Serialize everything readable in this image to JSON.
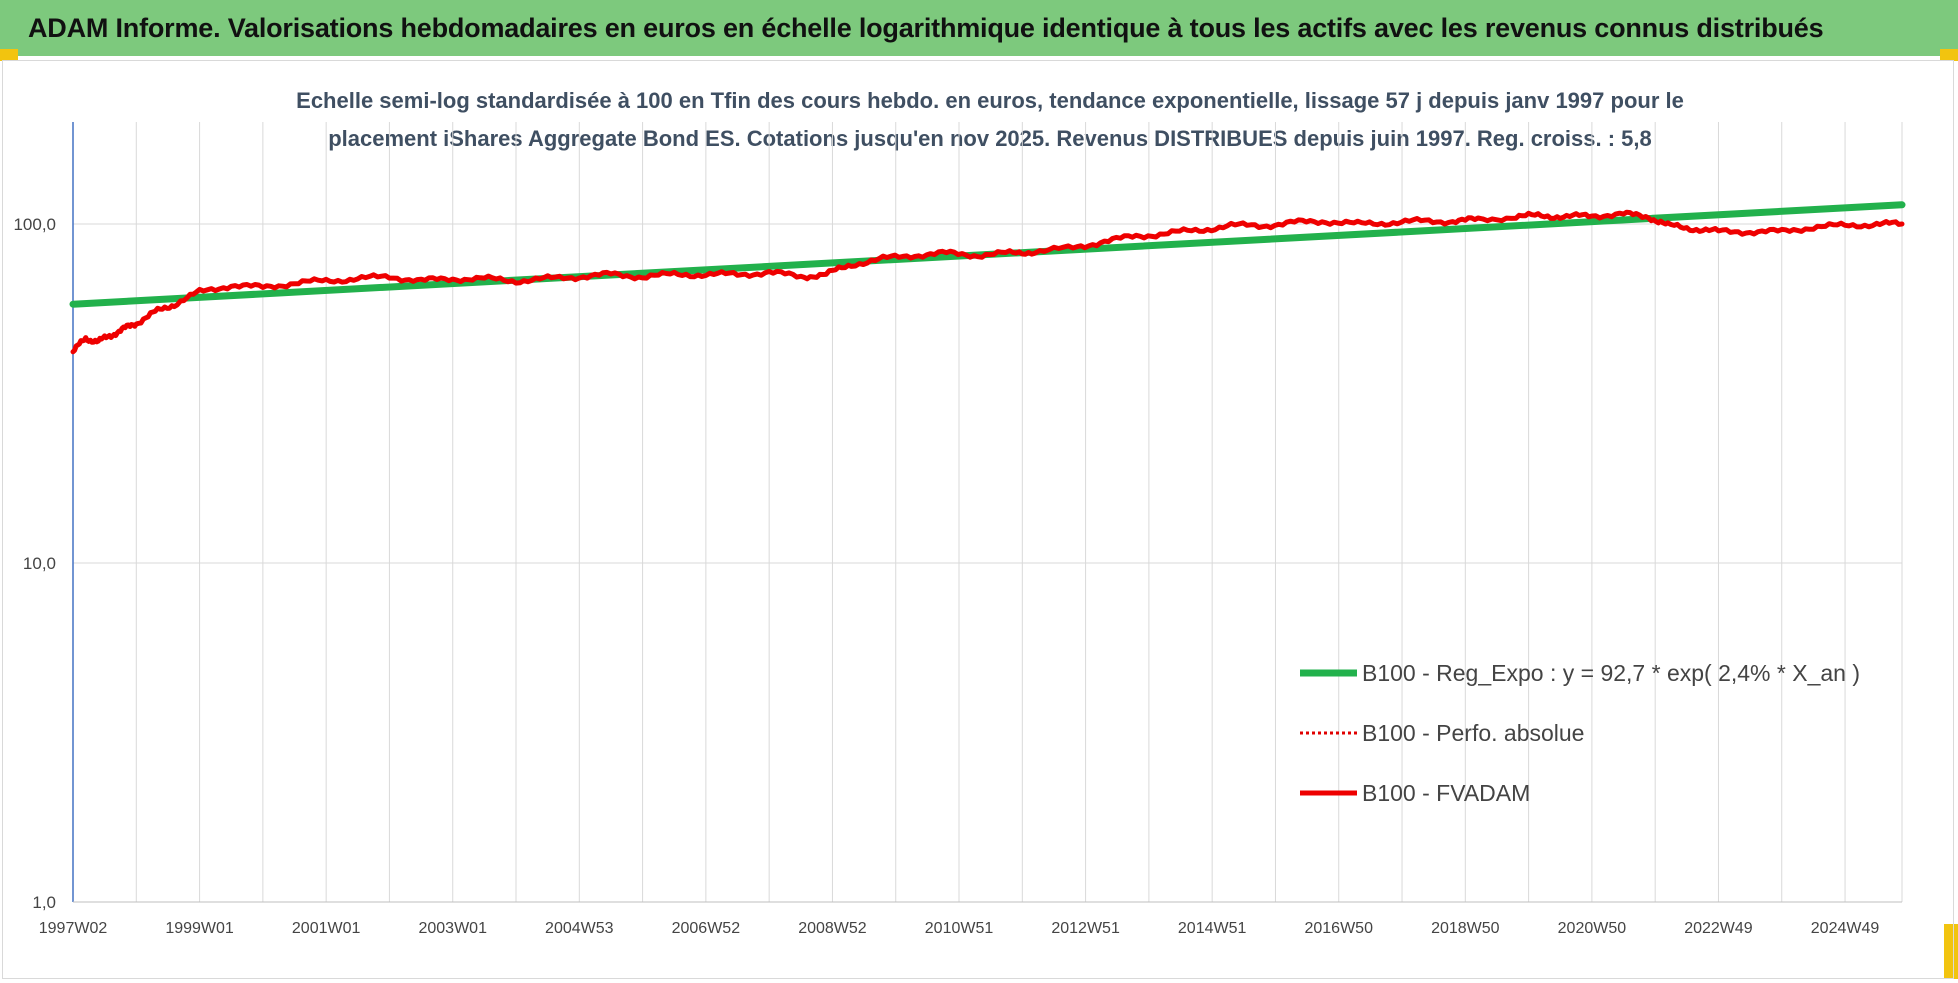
{
  "header": {
    "title": "ADAM Informe. Valorisations hebdomadaires en euros en échelle logarithmique identique à tous les actifs avec les revenus connus distribués"
  },
  "colors": {
    "banner": "#7dc97d",
    "regression": "#22b14c",
    "perf": "#e00000",
    "fvadam": "#ee0000",
    "grid": "#d9d9d9",
    "title": "#3f4f62"
  },
  "chart_data": {
    "type": "line",
    "title_lines": [
      "Echelle semi-log standardisée à 100 en Tfin des cours hebdo. en euros, tendance exponentielle, lissage 57 j depuis janv 1997 pour le",
      "placement iShares Aggregate Bond ES. Cotations jusqu'en nov 2025. Revenus DISTRIBUES depuis juin 1997. Reg. croiss. : 5,8"
    ],
    "y_scale": "log",
    "ylim": [
      1,
      200
    ],
    "y_ticks": [
      {
        "value": 1,
        "label": "1,0"
      },
      {
        "value": 10,
        "label": "10,0"
      },
      {
        "value": 100,
        "label": "100,0"
      }
    ],
    "xlim": [
      1997.0,
      2025.9
    ],
    "x_ticks": [
      {
        "year": 1997.0,
        "label": "1997W02"
      },
      {
        "year": 1999.0,
        "label": "1999W01"
      },
      {
        "year": 2001.0,
        "label": "2001W01"
      },
      {
        "year": 2003.0,
        "label": "2003W01"
      },
      {
        "year": 2005.0,
        "label": "2004W53"
      },
      {
        "year": 2007.0,
        "label": "2006W52"
      },
      {
        "year": 2009.0,
        "label": "2008W52"
      },
      {
        "year": 2011.0,
        "label": "2010W51"
      },
      {
        "year": 2013.0,
        "label": "2012W51"
      },
      {
        "year": 2015.0,
        "label": "2014W51"
      },
      {
        "year": 2017.0,
        "label": "2016W50"
      },
      {
        "year": 2019.0,
        "label": "2018W50"
      },
      {
        "year": 2021.0,
        "label": "2020W50"
      },
      {
        "year": 2023.0,
        "label": "2022W49"
      },
      {
        "year": 2025.0,
        "label": "2024W49"
      }
    ],
    "grid": "vertical and horizontal",
    "legend_position": "lower-right",
    "series": [
      {
        "name": "B100 - Reg_Expo : y = 92,7 * exp( 2,4% *  X_an )",
        "style": "solid-green",
        "x": [
          1997.0,
          2025.9
        ],
        "y": [
          58,
          114
        ]
      },
      {
        "name": "B100 - Perfo. absolue",
        "style": "dotted-red",
        "x": [
          1997.0,
          1997.2,
          1997.4,
          1997.6,
          1997.8,
          1998.0,
          1998.3,
          1998.6,
          1999.0,
          1999.5,
          2000.0,
          2000.5,
          2001.0,
          2001.5,
          2002.0,
          2002.5,
          2003.0,
          2003.5,
          2004.0,
          2004.5,
          2005.0,
          2005.5,
          2006.0,
          2006.5,
          2007.0,
          2007.5,
          2008.0,
          2008.5,
          2008.9,
          2009.3,
          2009.8,
          2010.3,
          2010.8,
          2011.3,
          2011.8,
          2012.2,
          2012.8,
          2013.3,
          2013.8,
          2014.3,
          2014.8,
          2015.3,
          2015.8,
          2016.3,
          2016.8,
          2017.3,
          2017.8,
          2018.3,
          2018.8,
          2019.2,
          2019.8,
          2020.2,
          2020.6,
          2021.0,
          2021.5,
          2021.9,
          2022.2,
          2022.6,
          2023.0,
          2023.5,
          2024.0,
          2024.5,
          2025.0,
          2025.5,
          2025.9
        ],
        "y": [
          42,
          46,
          45,
          47,
          49,
          51,
          55,
          58,
          63,
          66,
          65,
          67,
          68,
          69,
          70,
          68,
          69,
          69,
          68,
          69,
          70,
          71,
          70,
          71,
          71,
          71,
          72,
          70,
          71,
          76,
          79,
          81,
          82,
          81,
          82,
          83,
          85,
          89,
          92,
          94,
          96,
          99,
          99,
          101,
          102,
          100,
          101,
          102,
          102,
          103,
          105,
          106,
          105,
          106,
          107,
          105,
          99,
          97,
          95,
          95,
          95,
          98,
          99,
          100,
          100
        ]
      },
      {
        "name": "B100 - FVADAM",
        "style": "solid-red",
        "x": [
          1997.0,
          1997.2,
          1997.4,
          1997.6,
          1997.8,
          1998.0,
          1998.3,
          1998.6,
          1999.0,
          1999.5,
          2000.0,
          2000.5,
          2001.0,
          2001.5,
          2002.0,
          2002.5,
          2003.0,
          2003.5,
          2004.0,
          2004.5,
          2005.0,
          2005.5,
          2006.0,
          2006.5,
          2007.0,
          2007.5,
          2008.0,
          2008.5,
          2008.9,
          2009.3,
          2009.8,
          2010.3,
          2010.8,
          2011.3,
          2011.8,
          2012.2,
          2012.8,
          2013.3,
          2013.8,
          2014.3,
          2014.8,
          2015.3,
          2015.8,
          2016.3,
          2016.8,
          2017.3,
          2017.8,
          2018.3,
          2018.8,
          2019.2,
          2019.8,
          2020.2,
          2020.6,
          2021.0,
          2021.5,
          2021.9,
          2022.2,
          2022.6,
          2023.0,
          2023.5,
          2024.0,
          2024.5,
          2025.0,
          2025.5,
          2025.9
        ],
        "y": [
          42,
          46,
          45,
          47,
          49,
          51,
          55,
          58,
          63,
          66,
          65,
          67,
          68,
          69,
          70,
          68,
          69,
          69,
          68,
          69,
          70,
          71,
          70,
          71,
          71,
          71,
          72,
          70,
          71,
          76,
          79,
          81,
          82,
          81,
          82,
          83,
          85,
          89,
          92,
          94,
          96,
          99,
          99,
          101,
          102,
          100,
          101,
          102,
          102,
          103,
          105,
          106,
          105,
          106,
          107,
          105,
          99,
          97,
          95,
          95,
          95,
          98,
          99,
          100,
          100
        ]
      }
    ]
  }
}
